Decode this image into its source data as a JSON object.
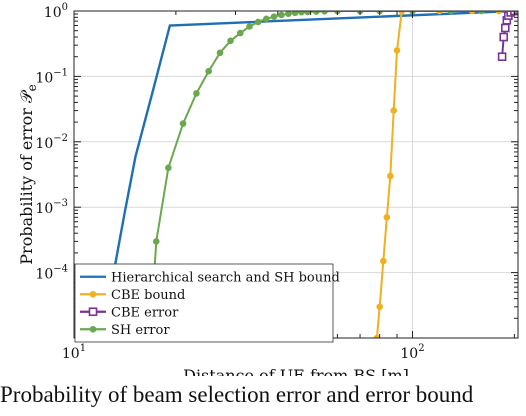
{
  "chart_data": {
    "type": "line",
    "xlabel": "Distance of UE from BS [m]",
    "ylabel": "Probability of error 𝒫",
    "ylabel_sub": "e",
    "xscale": "log",
    "yscale": "log",
    "xlim": [
      10,
      205
    ],
    "ylim": [
      1e-05,
      1
    ],
    "grid": true,
    "legend_position": "bottom-left",
    "x_ticks": [
      {
        "value": 10,
        "base": "10",
        "exp": "1"
      },
      {
        "value": 100,
        "base": "10",
        "exp": "2"
      }
    ],
    "y_ticks": [
      {
        "value": 0.0001,
        "base": "10",
        "exp": "−4"
      },
      {
        "value": 0.001,
        "base": "10",
        "exp": "−3"
      },
      {
        "value": 0.01,
        "base": "10",
        "exp": "−2"
      },
      {
        "value": 0.1,
        "base": "10",
        "exp": "−1"
      },
      {
        "value": 1,
        "base": "10",
        "exp": "0"
      }
    ],
    "series": [
      {
        "name": "Hierarchical search and SH bound",
        "color": "#1f6fb4",
        "marker": "none",
        "x": [
          12.2,
          13.1,
          14.1,
          15.2,
          17.1,
          19.2,
          200
        ],
        "y": [
          1e-05,
          0.0001,
          0.0008,
          0.006,
          0.06,
          0.6,
          1
        ]
      },
      {
        "name": "CBE bound",
        "color": "#f0b020",
        "marker": "dot",
        "x": [
          78.5,
          80,
          82,
          84,
          86,
          88,
          90,
          93,
          100,
          120,
          150,
          180,
          205
        ],
        "y": [
          1e-05,
          3e-05,
          0.00015,
          0.0007,
          0.003,
          0.03,
          0.25,
          1,
          1,
          1,
          1,
          1,
          1
        ]
      },
      {
        "name": "CBE error",
        "color": "#7b3294",
        "marker": "square",
        "x": [
          184,
          186,
          188,
          190,
          192,
          195,
          200,
          205
        ],
        "y": [
          0.2,
          0.4,
          0.55,
          0.72,
          0.85,
          0.95,
          1,
          1
        ]
      },
      {
        "name": "SH error",
        "color": "#6aa84f",
        "marker": "dot",
        "x": [
          16.8,
          17.5,
          19,
          21,
          23,
          25,
          27,
          29,
          31,
          33,
          35,
          37,
          39,
          41,
          43,
          45,
          47,
          49,
          52,
          55,
          60,
          70,
          80,
          100,
          130,
          160,
          205
        ],
        "y": [
          1e-05,
          0.0003,
          0.004,
          0.019,
          0.055,
          0.12,
          0.23,
          0.35,
          0.46,
          0.58,
          0.68,
          0.76,
          0.82,
          0.87,
          0.91,
          0.94,
          0.96,
          0.97,
          0.98,
          0.99,
          1,
          1,
          1,
          1,
          1,
          1,
          1
        ]
      }
    ]
  },
  "caption": "Probability of beam selection error and error bound"
}
